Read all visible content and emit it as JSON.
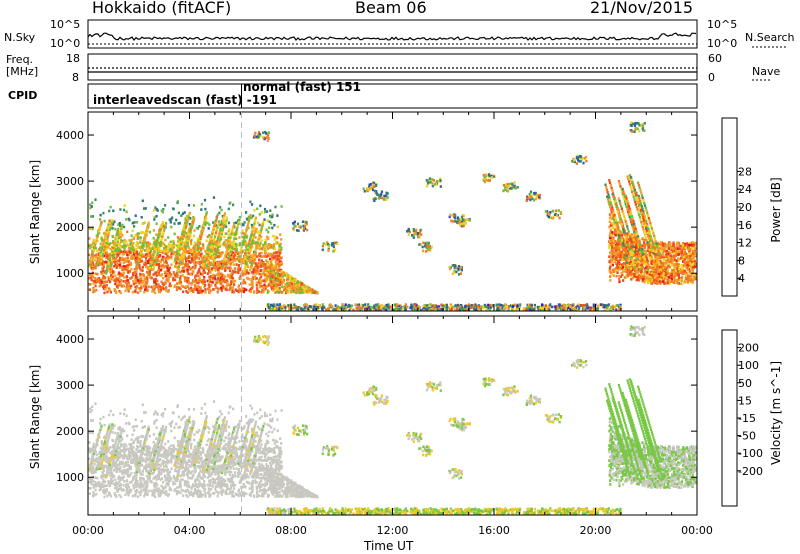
{
  "header": {
    "station": "Hokkaido (fitACF)",
    "beam": "Beam 06",
    "date": "21/Nov/2015"
  },
  "top_panels": {
    "nsky_label": "N.Sky",
    "nsky_ticks": [
      "10^5",
      "10^0"
    ],
    "nsearch_label": "N.Search",
    "nsearch_ticks": [
      "10^5",
      "10^0"
    ],
    "freq_label_1": "Freq.",
    "freq_label_2": "[MHz]",
    "freq_ticks": [
      "18",
      "8"
    ],
    "nave_label": "Nave",
    "nave_ticks": [
      "60",
      "0"
    ],
    "cpid_label": "CPID",
    "cpid_segments": [
      "interleavedscan (fast) -191",
      "normal (fast) 151"
    ]
  },
  "chart_data": [
    {
      "type": "heatmap",
      "title": "",
      "xlabel": "",
      "ylabel": "Slant Range [km]",
      "x_range_hours": [
        0,
        24
      ],
      "ylim": [
        180,
        4500
      ],
      "y_ticks": [
        1000,
        2000,
        3000,
        4000
      ],
      "colorbar": {
        "label": "Power [dB]",
        "ticks": [
          "4",
          "8",
          "12",
          "16",
          "20",
          "24",
          "28"
        ],
        "colors": [
          "#1e1ef0",
          "#2850b4",
          "#2d6e82",
          "#3c8c64",
          "#6ebe3c",
          "#f0d21e",
          "#f0a028",
          "#f07828",
          "#f04b1e",
          "#e61e14"
        ]
      }
    },
    {
      "type": "heatmap",
      "title": "",
      "xlabel": "Time UT",
      "ylabel": "Slant Range [km]",
      "x_range_hours": [
        0,
        24
      ],
      "ylim": [
        180,
        4500
      ],
      "y_ticks": [
        1000,
        2000,
        3000,
        4000
      ],
      "x_tick_labels": [
        "00:00",
        "04:00",
        "08:00",
        "12:00",
        "16:00",
        "20:00",
        "00:00"
      ],
      "colorbar": {
        "label": "Velocity [m s^-1]",
        "ticks": [
          "200",
          "100",
          "50",
          "15",
          "-15",
          "-50",
          "-100",
          "-200"
        ],
        "colors": [
          "#2838b4",
          "#3c64be",
          "#328c5a",
          "#78c846",
          "#c8c8c0",
          "#f0c828",
          "#f0a028",
          "#f07820",
          "#e63214",
          "#e61414"
        ]
      }
    }
  ]
}
